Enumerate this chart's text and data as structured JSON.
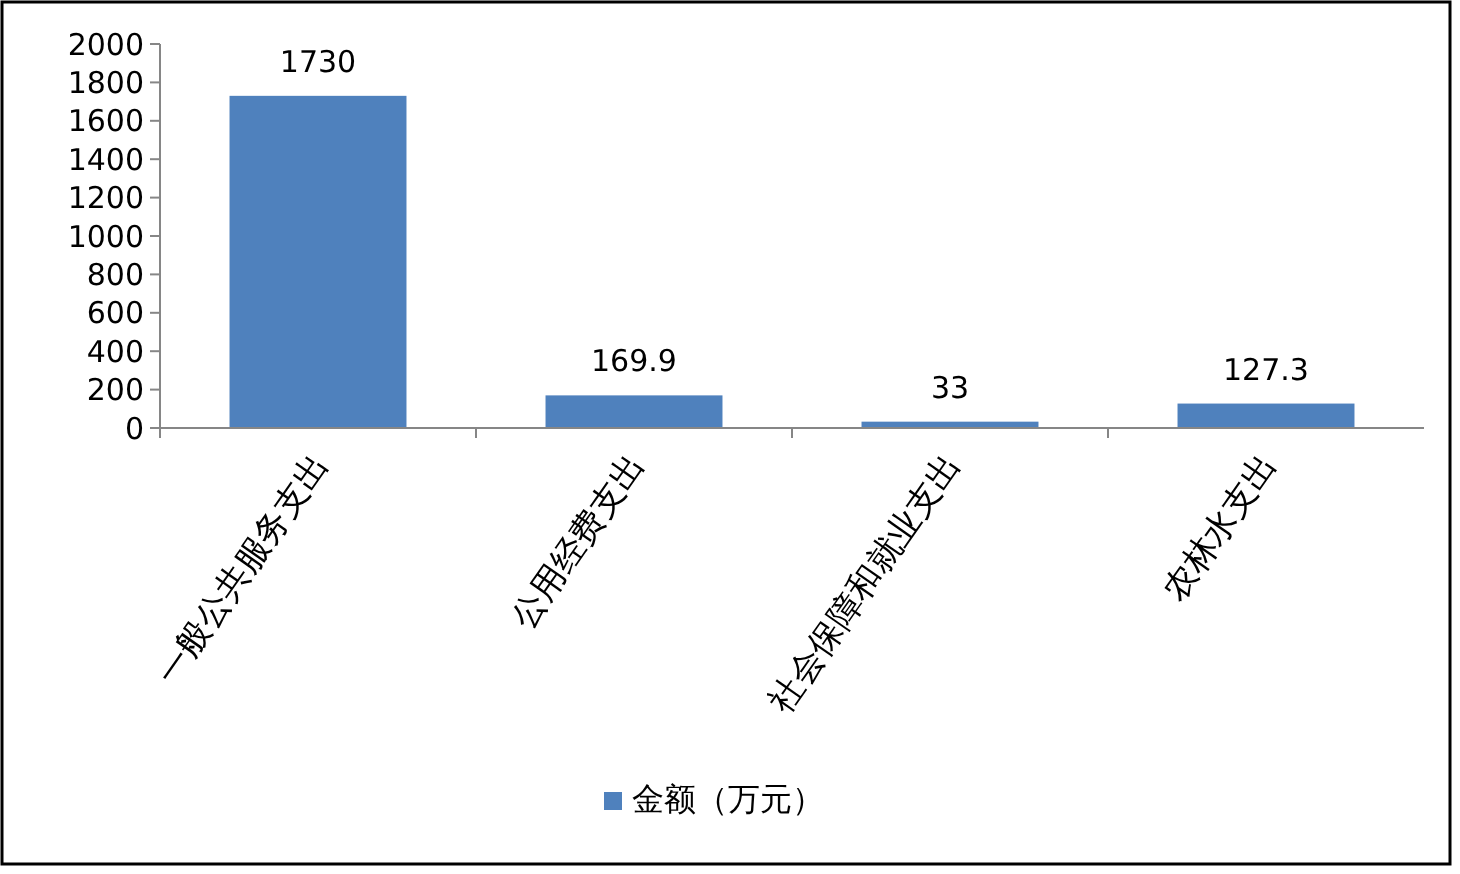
{
  "chart_data": {
    "type": "bar",
    "categories": [
      "一般公共服务支出",
      "公用经费支出",
      "社会保障和就业支出",
      "农林水支出"
    ],
    "series": [
      {
        "name": "金额（万元）",
        "color": "#4f81bd",
        "values": [
          1730,
          169.9,
          33,
          127.3
        ]
      }
    ],
    "ylim": [
      0,
      2000
    ],
    "yticks": [
      0,
      200,
      400,
      600,
      800,
      1000,
      1200,
      1400,
      1600,
      1800,
      2000
    ],
    "data_labels": true,
    "legend": "bottom",
    "grid": false
  }
}
